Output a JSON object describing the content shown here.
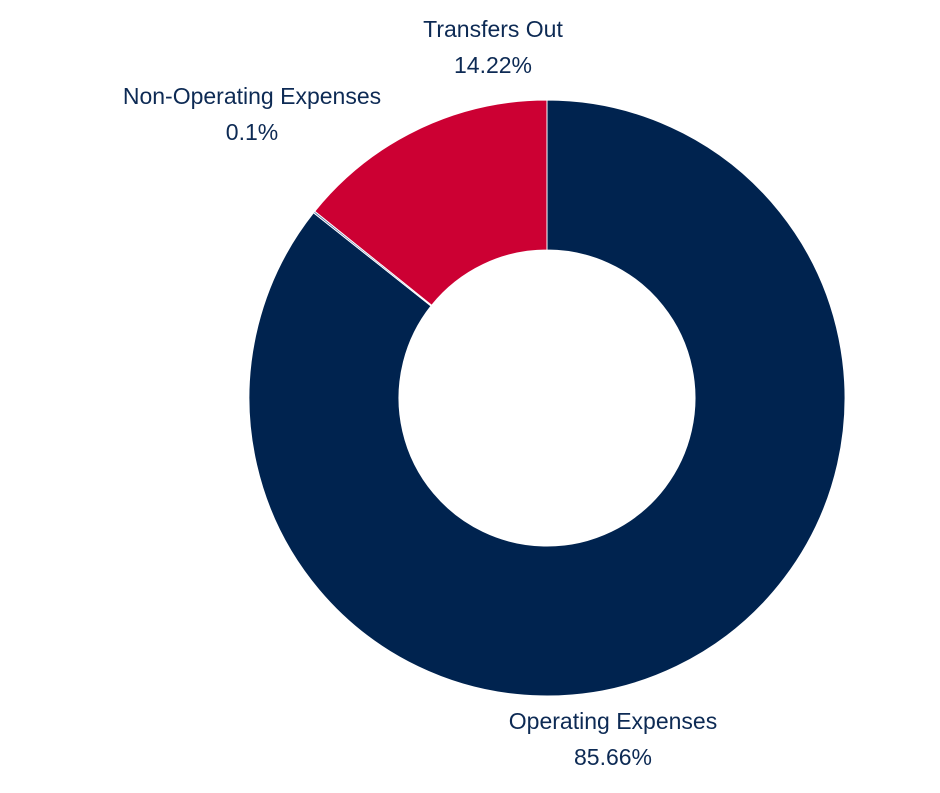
{
  "chart_data": {
    "type": "pie",
    "variant": "donut",
    "labels_outside": true,
    "slices": [
      {
        "label": "Operating Expenses",
        "value": 85.66,
        "value_label": "85.66%",
        "color": "#00234f"
      },
      {
        "label": "Non-Operating Expenses",
        "value": 0.1,
        "value_label": "0.1%",
        "color": "#4b6a9e"
      },
      {
        "label": "Transfers Out",
        "value": 14.22,
        "value_label": "14.22%",
        "color": "#cc0033"
      }
    ],
    "label_color": "#0d2a54"
  }
}
